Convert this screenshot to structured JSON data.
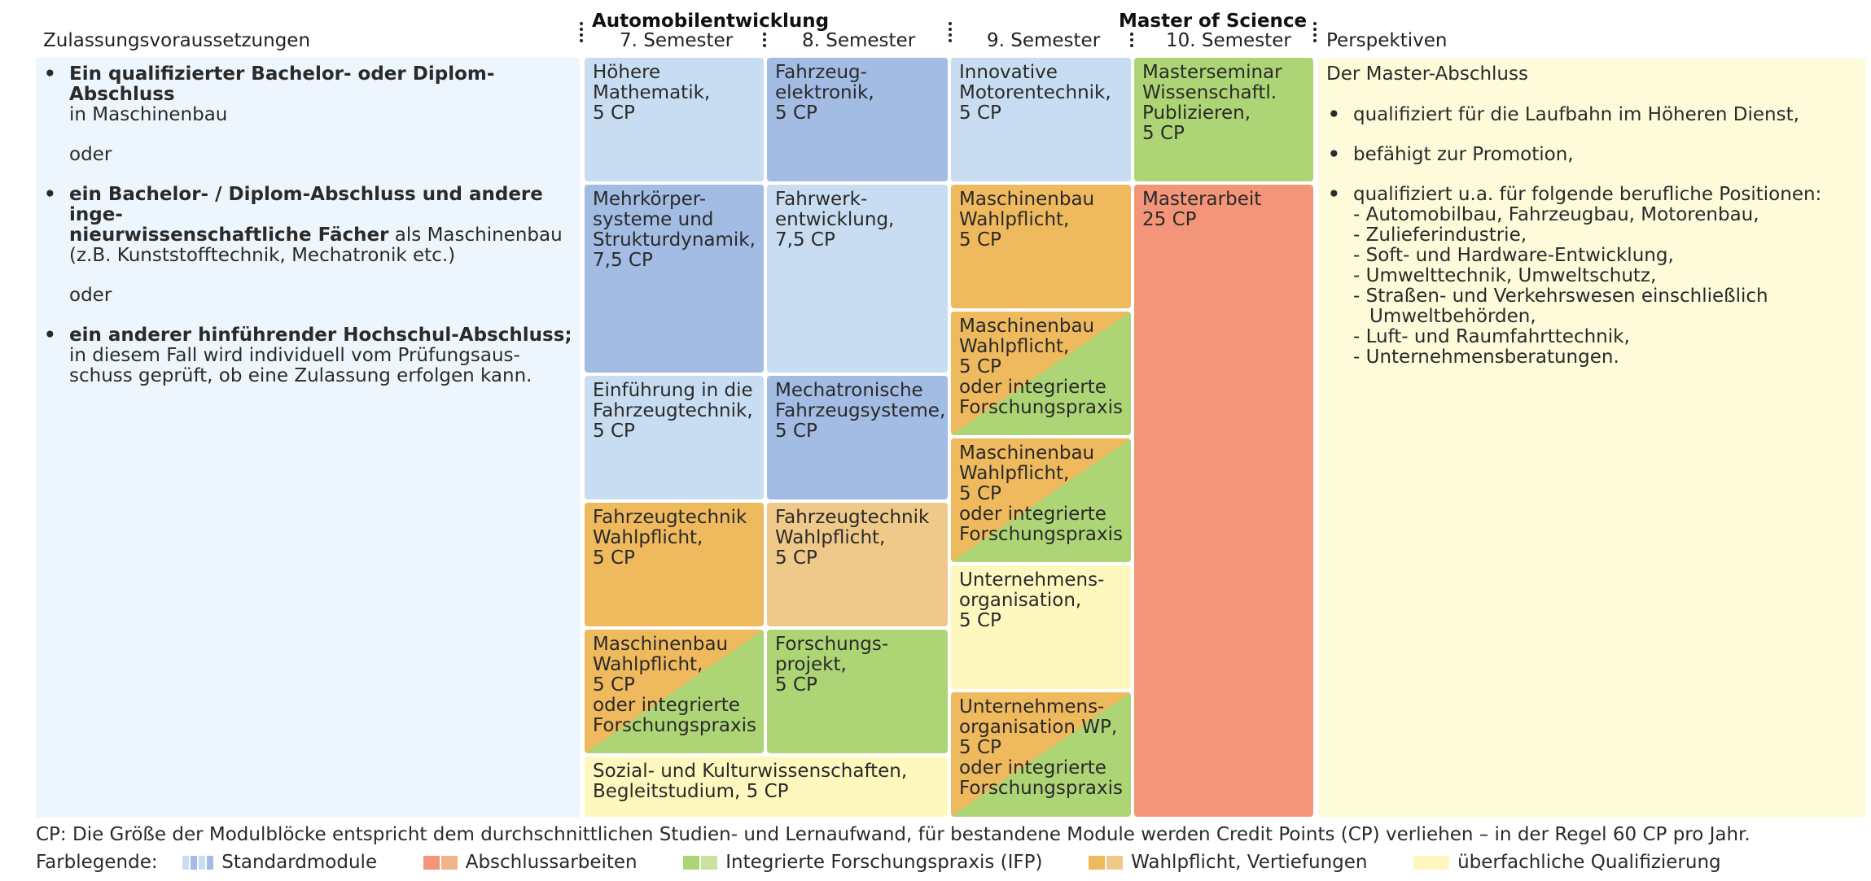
{
  "colors": {
    "light_blue": "#c8ddf1",
    "mid_blue": "#a2bce3",
    "orange": "#efb95d",
    "light_orange": "#efc98a",
    "green": "#add575",
    "light_yellow": "#fef8be",
    "salmon": "#f39578",
    "left_panel": "#eef6fd",
    "right_panel": "#fefbda"
  },
  "header": {
    "col_prereq": "Zulassungsvoraussetzungen",
    "group_auto": "Automobilentwicklung",
    "sem7": "7. Semester",
    "sem8": "8. Semester",
    "group_master": "Master of Science",
    "sem9": "9. Semester",
    "sem10": "10. Semester",
    "col_persp": "Perspektiven"
  },
  "prereq": {
    "item1_bold": "Ein qualifizierter Bachelor- oder Diplom-Abschluss",
    "item1_rest": "in Maschinenbau",
    "or1": "oder",
    "item2_bold_a": "ein Bachelor- / Diplom-Abschluss und andere inge-",
    "item2_bold_b": "nieurwissenschaftliche Fächer",
    "item2_rest_b": " als Maschinenbau",
    "item2_rest_c": "(z.B. Kunststofftechnik, Mechatronik etc.)",
    "or2": "oder",
    "item3_bold": "ein anderer hinführender Hochschul-Abschluss;",
    "item3_rest_a": "in diesem Fall wird individuell vom Prüfungsaus-",
    "item3_rest_b": "schuss geprüft, ob eine Zulassung erfolgen kann."
  },
  "sem7": [
    "Höhere\nMathematik,\n5 CP",
    "Mehrkörper-\nsysteme und\nStrukturdynamik,\n7,5 CP",
    "Einführung in die\nFahrzeugtechnik,\n5 CP",
    "Fahrzeugtechnik\nWahlpflicht,\n5 CP",
    "Maschinenbau\nWahlpflicht,\n5 CP\noder integrierte\nForschungspraxis",
    "Sozial- und Kulturwissenschaften,\nBegleitstudium, 5 CP"
  ],
  "sem8": [
    "Fahrzeug-\nelektronik,\n5 CP",
    "Fahrwerk-\nentwicklung,\n7,5 CP",
    "Mechatronische\nFahrzeugsysteme,\n5 CP",
    "Fahrzeugtechnik\nWahlpflicht,\n5 CP",
    "Forschungs-\nprojekt,\n5 CP"
  ],
  "sem9": [
    "Innovative\nMotorentechnik,\n5 CP",
    "Maschinenbau\nWahlpflicht,\n5 CP",
    "Maschinenbau\nWahlpflicht,\n5 CP\noder integrierte\nForschungspraxis",
    "Maschinenbau\nWahlpflicht,\n5 CP\noder integrierte\nForschungspraxis",
    "Unternehmens-\norganisation,\n5 CP",
    "Unternehmens-\norganisation WP,\n5 CP\noder integrierte\nForschungspraxis"
  ],
  "sem10": [
    "Masterseminar\nWissenschaftl.\nPublizieren,\n5 CP",
    "Masterarbeit\n25 CP"
  ],
  "persp": {
    "intro": "Der Master-Abschluss",
    "b1": "qualifiziert für die Laufbahn im Höheren Dienst,",
    "b2": "befähigt zur Promotion,",
    "b3": "qualifiziert u.a. für folgende berufliche Positionen:",
    "positions": [
      "- Automobilbau, Fahrzeugbau, Motorenbau,",
      "- Zulieferindustrie,",
      "- Soft- und Hardware-Entwicklung,",
      "- Umwelttechnik, Umweltschutz,",
      "- Straßen- und Verkehrswesen einschließlich",
      "Umweltbehörden,",
      "- Luft- und Raumfahrttechnik,",
      "- Unternehmensberatungen."
    ]
  },
  "footer": {
    "cp_note": "CP: Die Größe der Modulblöcke entspricht dem durchschnittlichen Studien- und Lernaufwand, für bestandene Module werden Credit Points (CP) verliehen – in der Regel 60 CP pro Jahr.",
    "legend_title": "Farblegende:",
    "legend": [
      "Standardmodule",
      "Abschlussarbeiten",
      "Integrierte Forschungspraxis (IFP)",
      "Wahlpflicht, Vertiefungen",
      "überfachliche Qualifizierung"
    ]
  }
}
